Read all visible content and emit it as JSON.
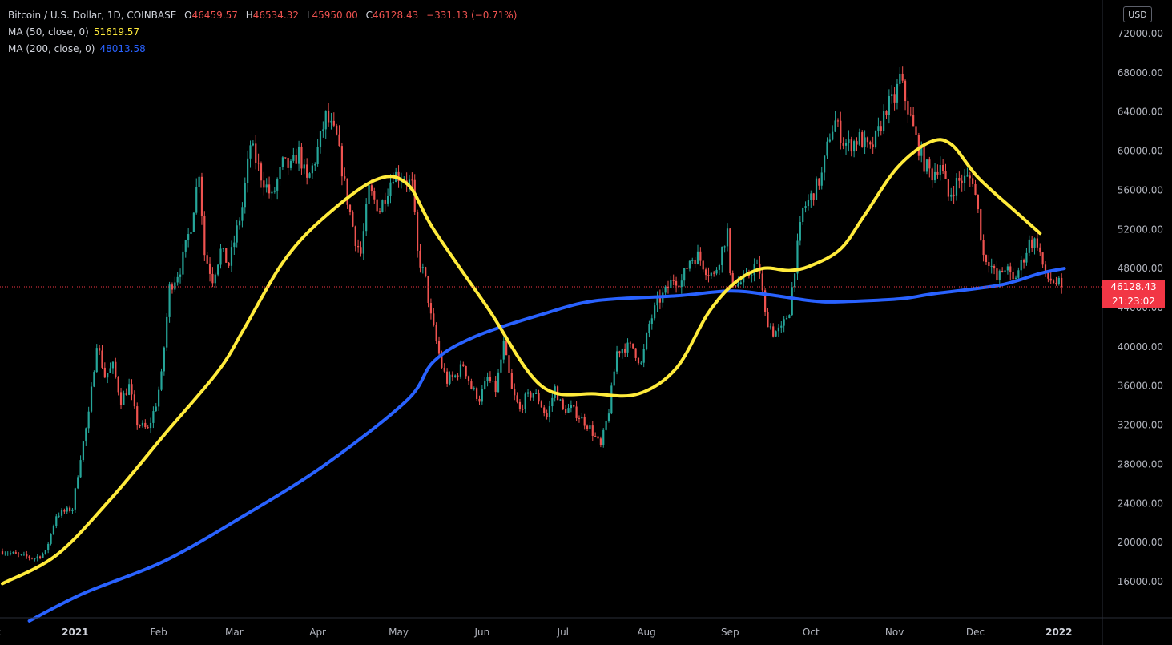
{
  "legend": {
    "symbol": "Bitcoin / U.S. Dollar, 1D, COINBASE",
    "o_label": "O",
    "o_value": "46459.57",
    "h_label": "H",
    "h_value": "46534.32",
    "l_label": "L",
    "l_value": "45950.00",
    "c_label": "C",
    "c_value": "46128.43",
    "change": "−331.13 (−0.71%)",
    "ma50_label": "MA (50, close, 0)",
    "ma50_value": "51619.57",
    "ma50_color": "#ffeb3b",
    "ma200_label": "MA (200, close, 0)",
    "ma200_value": "48013.58",
    "ma200_color": "#2962ff"
  },
  "currency_button": "USD",
  "last_price_tag": "46128.43",
  "countdown_tag": "21:23:02",
  "colors": {
    "up": "#26a69a",
    "down": "#ef5350",
    "ma50": "#ffeb3b",
    "ma200": "#2962ff",
    "background": "#000000",
    "axis_text": "#b2b5be"
  },
  "chart_data": {
    "type": "candlestick",
    "title": "Bitcoin / U.S. Dollar, 1D, COINBASE",
    "xlabel": "",
    "ylabel": "",
    "ylim": [
      12000,
      74000
    ],
    "y_ticks": [
      "72000.00",
      "68000.00",
      "64000.00",
      "60000.00",
      "56000.00",
      "52000.00",
      "48000.00",
      "44000.00",
      "40000.00",
      "36000.00",
      "32000.00",
      "28000.00",
      "24000.00",
      "20000.00",
      "16000.00"
    ],
    "x_ticks": [
      "Dec",
      "2021",
      "Feb",
      "Mar",
      "Apr",
      "May",
      "Jun",
      "Jul",
      "Aug",
      "Sep",
      "Oct",
      "Nov",
      "Dec",
      "2022"
    ],
    "x_tick_days": [
      -4,
      27,
      58,
      86,
      117,
      147,
      178,
      208,
      239,
      270,
      300,
      331,
      361,
      392
    ],
    "x_day_range": [
      0,
      398
    ],
    "last_price": 46128.43,
    "price_anchors": [
      [
        0,
        19100
      ],
      [
        6,
        18700
      ],
      [
        12,
        18400
      ],
      [
        16,
        19000
      ],
      [
        20,
        22800
      ],
      [
        26,
        23500
      ],
      [
        29,
        28800
      ],
      [
        32,
        33000
      ],
      [
        35,
        40500
      ],
      [
        38,
        37000
      ],
      [
        41,
        38000
      ],
      [
        44,
        34500
      ],
      [
        47,
        36000
      ],
      [
        50,
        32200
      ],
      [
        54,
        31500
      ],
      [
        57,
        34200
      ],
      [
        59,
        37000
      ],
      [
        62,
        46000
      ],
      [
        66,
        48000
      ],
      [
        70,
        52500
      ],
      [
        73,
        58000
      ],
      [
        75,
        49500
      ],
      [
        78,
        47000
      ],
      [
        81,
        49800
      ],
      [
        84,
        48400
      ],
      [
        89,
        54300
      ],
      [
        92,
        60700
      ],
      [
        96,
        57500
      ],
      [
        100,
        55200
      ],
      [
        104,
        58700
      ],
      [
        107,
        58300
      ],
      [
        110,
        59900
      ],
      [
        113,
        56800
      ],
      [
        116,
        59100
      ],
      [
        120,
        63500
      ],
      [
        124,
        61300
      ],
      [
        128,
        55000
      ],
      [
        131,
        51000
      ],
      [
        133,
        49500
      ],
      [
        136,
        56000
      ],
      [
        140,
        54000
      ],
      [
        145,
        57700
      ],
      [
        149,
        57300
      ],
      [
        152,
        56500
      ],
      [
        154,
        49500
      ],
      [
        157,
        46800
      ],
      [
        159,
        43000
      ],
      [
        163,
        38000
      ],
      [
        165,
        36500
      ],
      [
        168,
        37000
      ],
      [
        171,
        38200
      ],
      [
        174,
        35800
      ],
      [
        177,
        34700
      ],
      [
        180,
        36800
      ],
      [
        183,
        35600
      ],
      [
        186,
        40200
      ],
      [
        189,
        35500
      ],
      [
        192,
        33500
      ],
      [
        194,
        34700
      ],
      [
        197,
        35300
      ],
      [
        199,
        34600
      ],
      [
        202,
        32800
      ],
      [
        205,
        35800
      ],
      [
        208,
        33500
      ],
      [
        211,
        33700
      ],
      [
        214,
        32900
      ],
      [
        218,
        31700
      ],
      [
        222,
        29800
      ],
      [
        225,
        33500
      ],
      [
        228,
        39500
      ],
      [
        231,
        40000
      ],
      [
        234,
        39900
      ],
      [
        237,
        38200
      ],
      [
        240,
        42300
      ],
      [
        243,
        44500
      ],
      [
        246,
        45600
      ],
      [
        249,
        47000
      ],
      [
        252,
        46700
      ],
      [
        255,
        48900
      ],
      [
        258,
        49300
      ],
      [
        261,
        48000
      ],
      [
        264,
        47200
      ],
      [
        267,
        50000
      ],
      [
        269,
        51800
      ],
      [
        270,
        46900
      ],
      [
        273,
        46400
      ],
      [
        276,
        46900
      ],
      [
        279,
        48300
      ],
      [
        281,
        47700
      ],
      [
        283,
        43200
      ],
      [
        286,
        41500
      ],
      [
        289,
        41700
      ],
      [
        292,
        43800
      ],
      [
        294,
        48200
      ],
      [
        297,
        54000
      ],
      [
        300,
        55300
      ],
      [
        304,
        57500
      ],
      [
        307,
        61700
      ],
      [
        309,
        63000
      ],
      [
        312,
        61000
      ],
      [
        314,
        60600
      ],
      [
        318,
        61300
      ],
      [
        322,
        60000
      ],
      [
        325,
        61900
      ],
      [
        328,
        64500
      ],
      [
        331,
        65300
      ],
      [
        333,
        67500
      ],
      [
        336,
        64300
      ],
      [
        339,
        61200
      ],
      [
        342,
        58700
      ],
      [
        345,
        57600
      ],
      [
        348,
        58800
      ],
      [
        351,
        55300
      ],
      [
        354,
        56800
      ],
      [
        357,
        57100
      ],
      [
        360,
        57200
      ],
      [
        362,
        53800
      ],
      [
        364,
        49300
      ],
      [
        366,
        48900
      ],
      [
        369,
        46800
      ],
      [
        372,
        48200
      ],
      [
        375,
        46700
      ],
      [
        378,
        48400
      ],
      [
        381,
        50700
      ],
      [
        384,
        50700
      ],
      [
        387,
        47100
      ],
      [
        390,
        46700
      ],
      [
        393,
        46200
      ]
    ],
    "series": [
      {
        "name": "MA (50, close, 0)",
        "values": [
          [
            0,
            15800
          ],
          [
            20,
            18700
          ],
          [
            40,
            24400
          ],
          [
            60,
            31000
          ],
          [
            80,
            37500
          ],
          [
            90,
            42000
          ],
          [
            104,
            48600
          ],
          [
            118,
            52900
          ],
          [
            138,
            57000
          ],
          [
            150,
            56700
          ],
          [
            160,
            52000
          ],
          [
            180,
            44000
          ],
          [
            200,
            36000
          ],
          [
            220,
            35200
          ],
          [
            236,
            35200
          ],
          [
            250,
            37800
          ],
          [
            262,
            43500
          ],
          [
            272,
            46600
          ],
          [
            282,
            48000
          ],
          [
            292,
            47800
          ],
          [
            300,
            48300
          ],
          [
            311,
            50000
          ],
          [
            320,
            53500
          ],
          [
            332,
            58300
          ],
          [
            344,
            60900
          ],
          [
            352,
            60700
          ],
          [
            362,
            57300
          ],
          [
            376,
            53800
          ],
          [
            385,
            51600
          ]
        ]
      },
      {
        "name": "MA (200, close, 0)",
        "values": [
          [
            10,
            12000
          ],
          [
            30,
            14800
          ],
          [
            60,
            18100
          ],
          [
            90,
            22800
          ],
          [
            120,
            28000
          ],
          [
            150,
            34500
          ],
          [
            160,
            38500
          ],
          [
            175,
            41000
          ],
          [
            200,
            43300
          ],
          [
            220,
            44700
          ],
          [
            250,
            45200
          ],
          [
            270,
            45700
          ],
          [
            285,
            45300
          ],
          [
            300,
            44700
          ],
          [
            310,
            44600
          ],
          [
            333,
            44900
          ],
          [
            345,
            45400
          ],
          [
            370,
            46300
          ],
          [
            385,
            47500
          ],
          [
            394,
            48000
          ]
        ]
      }
    ]
  }
}
